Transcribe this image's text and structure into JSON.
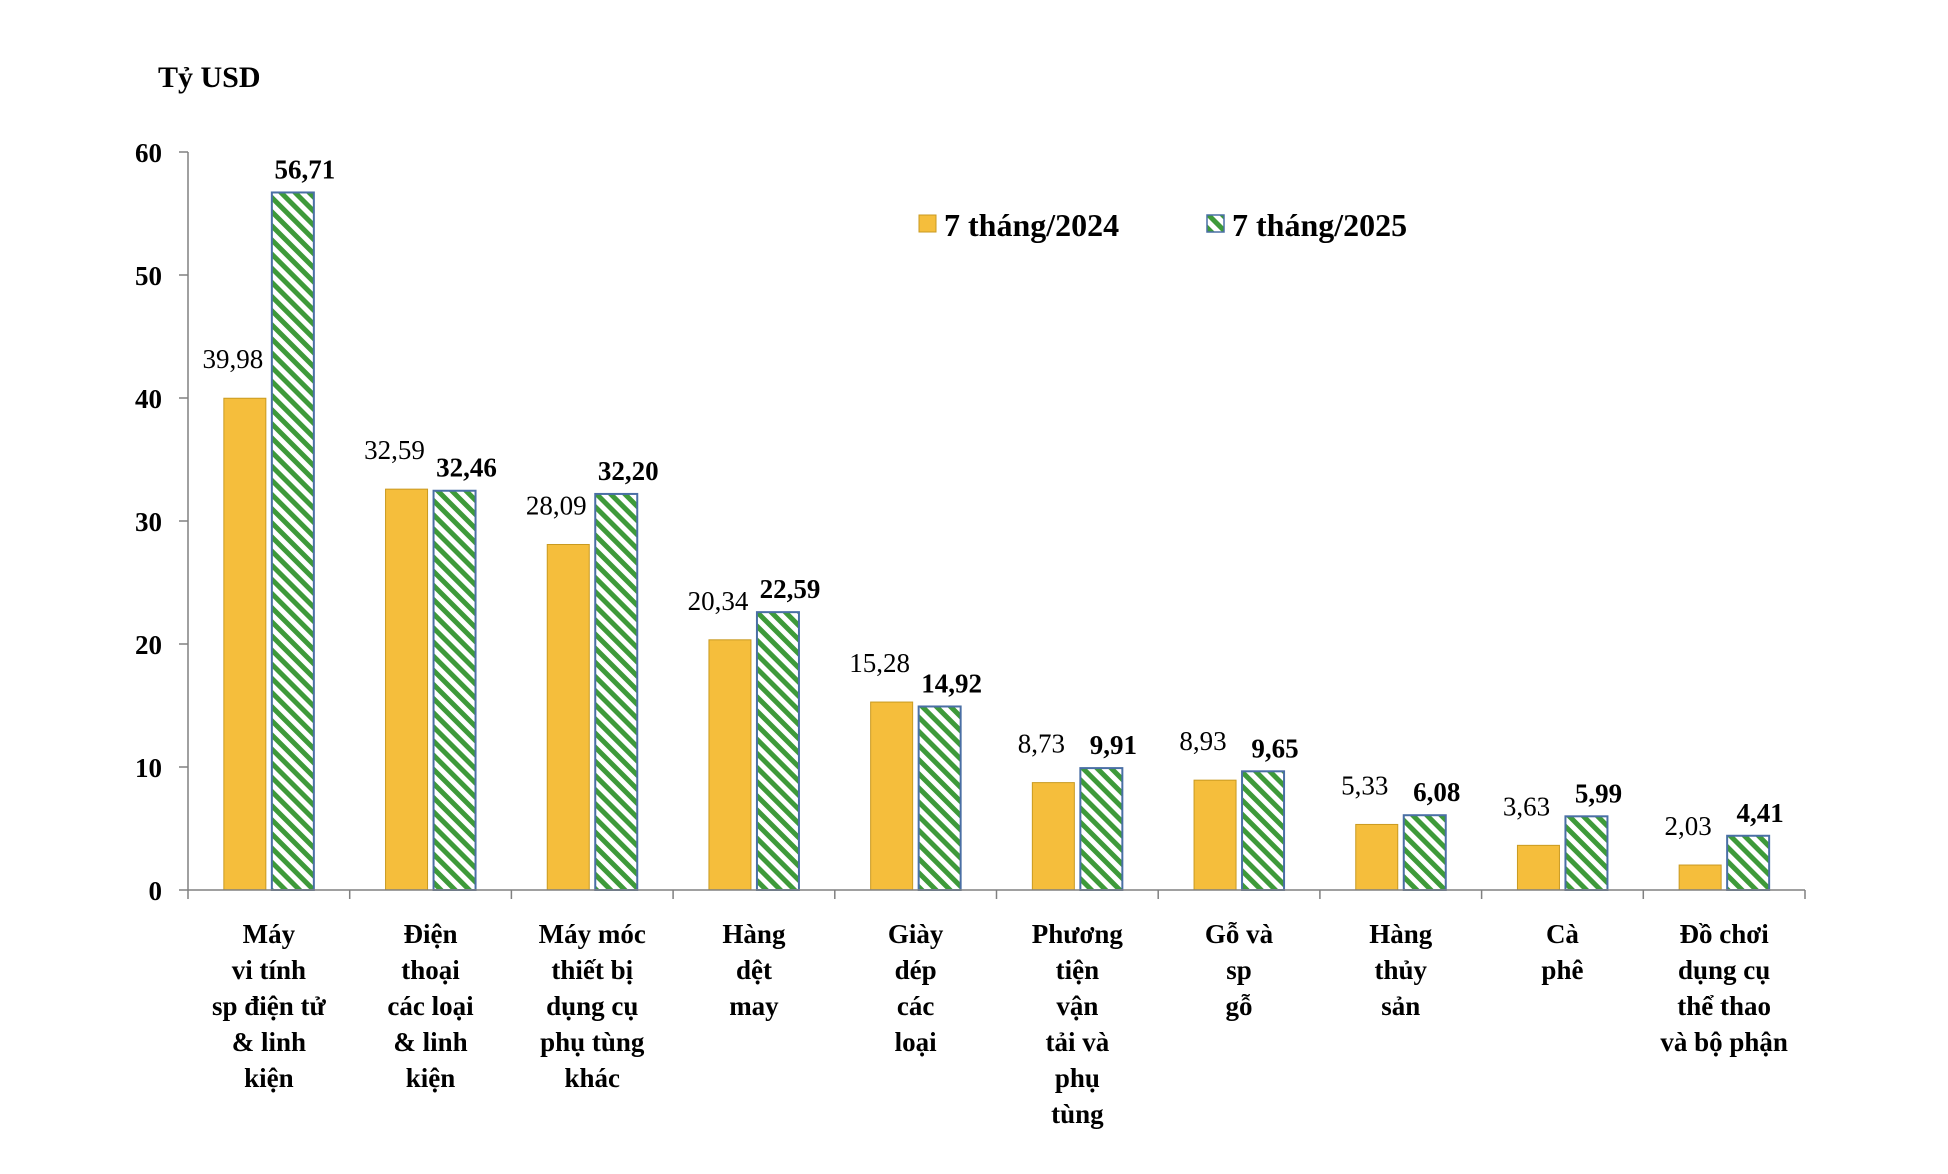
{
  "chart_data": {
    "type": "bar",
    "ylabel": "Tỷ USD",
    "ylim": [
      0,
      60
    ],
    "yticks": [
      "0",
      "10",
      "20",
      "30",
      "40",
      "50",
      "60"
    ],
    "grid": false,
    "legend_position": "top-right",
    "categories": [
      [
        "Máy",
        "vi tính",
        "sp điện tử",
        "& linh",
        "kiện"
      ],
      [
        "Điện",
        "thoại",
        "các loại",
        "& linh",
        "kiện"
      ],
      [
        "Máy móc",
        "thiết bị",
        "dụng cụ",
        "phụ tùng",
        "khác"
      ],
      [
        "Hàng",
        "dệt",
        "may"
      ],
      [
        "Giày",
        "dép",
        "các",
        "loại"
      ],
      [
        "Phương",
        "tiện",
        "vận",
        "tải và",
        "phụ",
        "tùng"
      ],
      [
        "Gỗ và",
        "sp",
        "gỗ"
      ],
      [
        "Hàng",
        "thủy",
        "sản"
      ],
      [
        "Cà",
        "phê"
      ],
      [
        "Đồ chơi",
        "dụng cụ",
        "thể thao",
        "và bộ phận"
      ]
    ],
    "series": [
      {
        "name": "7 tháng/2024",
        "color": "#F5BE3C",
        "values": [
          39.98,
          32.59,
          28.09,
          20.34,
          15.28,
          8.73,
          8.93,
          5.33,
          3.63,
          2.03
        ],
        "labels": [
          "39,98",
          "32,59",
          "28,09",
          "20,34",
          "15,28",
          "8,73",
          "8,93",
          "5,33",
          "3,63",
          "2,03"
        ]
      },
      {
        "name": "7 tháng/2025",
        "color": "#3E9A3A",
        "pattern": "diagonal-stripes",
        "values": [
          56.71,
          32.46,
          32.2,
          22.59,
          14.92,
          9.91,
          9.65,
          6.08,
          5.99,
          4.41
        ],
        "labels": [
          "56,71",
          "32,46",
          "32,20",
          "22,59",
          "14,92",
          "9,91",
          "9,65",
          "6,08",
          "5,99",
          "4,41"
        ]
      }
    ]
  }
}
